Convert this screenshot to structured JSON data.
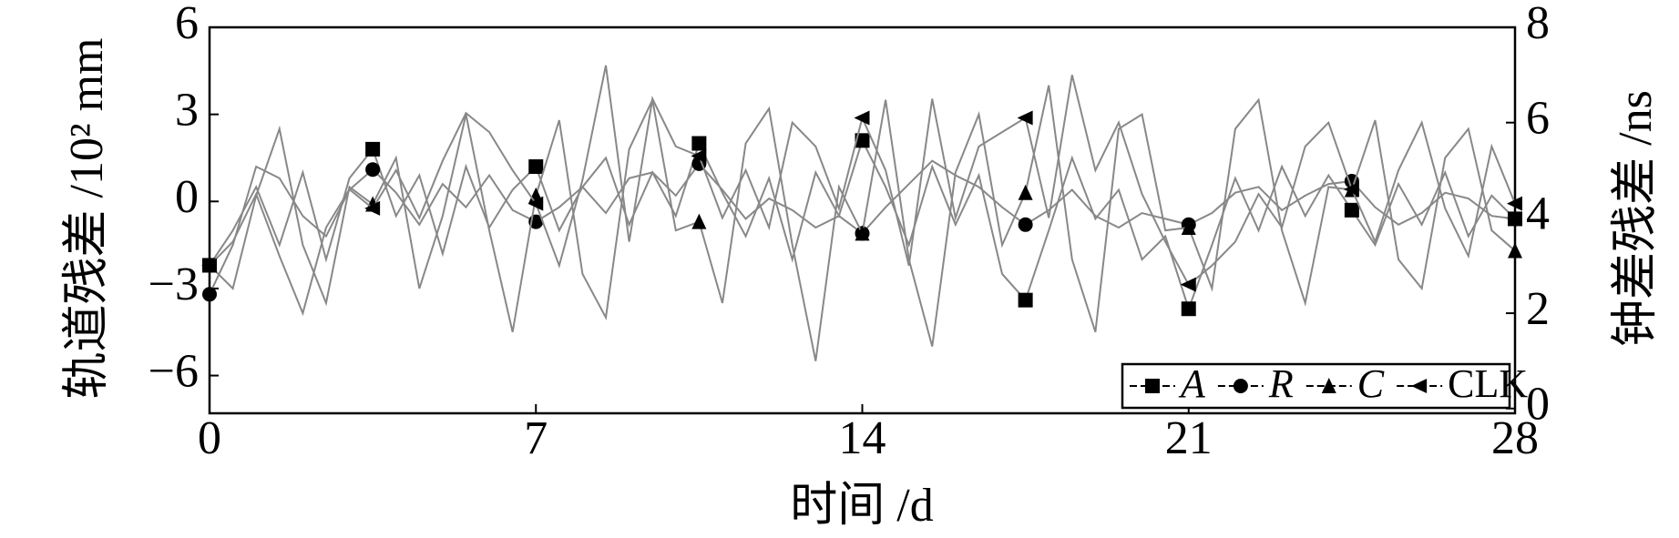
{
  "chart_data": {
    "type": "line",
    "x_label": "时间 /d",
    "y_label": "轨道残差 /10² mm",
    "y2_label": "钟差残差 /ns",
    "x": [
      0,
      0.5,
      1,
      1.5,
      2,
      2.5,
      3,
      3.5,
      4,
      4.5,
      5,
      5.5,
      6,
      6.5,
      7,
      7.5,
      8,
      8.5,
      9,
      9.5,
      10,
      10.5,
      11,
      11.5,
      12,
      12.5,
      13,
      13.5,
      14,
      14.5,
      15,
      15.5,
      16,
      16.5,
      17,
      17.5,
      18,
      18.5,
      19,
      19.5,
      20,
      20.5,
      21,
      21.5,
      22,
      22.5,
      23,
      23.5,
      24,
      24.5,
      25,
      25.5,
      26,
      26.5,
      27,
      27.5,
      28
    ],
    "xlim": [
      0,
      28
    ],
    "xticks": [
      0,
      7,
      14,
      21,
      28
    ],
    "ylim": [
      -7.3,
      6
    ],
    "yticks": [
      {
        "value": -6,
        "label": "−6"
      },
      {
        "value": -3,
        "label": "−3"
      },
      0,
      3,
      6
    ],
    "y2lim": [
      -0.1,
      8
    ],
    "y2ticks": [
      0,
      2,
      4,
      6,
      8
    ],
    "legend": "lower right",
    "series": [
      {
        "name": "A",
        "color": "#888888",
        "marker": "square",
        "values": [
          -2.2,
          -1.0,
          0.5,
          -1.5,
          1.0,
          -2.0,
          0.8,
          1.8,
          -0.5,
          0.9,
          -1.8,
          1.2,
          -0.9,
          0.4,
          1.2,
          -1.0,
          0.5,
          1.5,
          -0.8,
          1.0,
          -0.5,
          2.0,
          0.3,
          -1.2,
          0.8,
          -2.0,
          1.0,
          -0.5,
          2.1,
          0.5,
          -1.5,
          1.2,
          -0.8,
          0.9,
          -2.5,
          -3.4,
          -1.0,
          1.5,
          -0.6,
          0.4,
          -2.0,
          -1.2,
          -3.7,
          -1.5,
          0.8,
          -1.0,
          1.2,
          -0.5,
          0.9,
          -0.3,
          -1.5,
          0.6,
          -0.8,
          1.0,
          -1.2,
          0.2,
          -0.6
        ]
      },
      {
        "name": "R",
        "color": "#888888",
        "marker": "circle",
        "values": [
          -3.2,
          -1.5,
          1.2,
          0.8,
          -0.5,
          -1.2,
          0.4,
          1.1,
          0.3,
          -0.8,
          0.6,
          -0.2,
          0.9,
          -0.3,
          -0.7,
          -0.2,
          0.5,
          -0.4,
          0.8,
          1.0,
          0.2,
          1.3,
          0.4,
          -0.6,
          0.1,
          -0.3,
          -0.9,
          -0.5,
          -1.1,
          -0.2,
          0.6,
          1.4,
          0.9,
          0.5,
          -0.2,
          -0.8,
          -0.3,
          0.4,
          -0.5,
          -0.9,
          -0.4,
          -0.6,
          -0.8,
          -0.4,
          0.3,
          0.5,
          -0.3,
          0.2,
          0.6,
          0.7,
          -0.2,
          -0.8,
          -0.4,
          0.3,
          0.1,
          -0.5,
          -0.6
        ]
      },
      {
        "name": "C",
        "color": "#888888",
        "marker": "triangle-up",
        "values": [
          -2.2,
          -3.0,
          0.2,
          2.5,
          -1.5,
          -3.5,
          0.5,
          -0.1,
          1.5,
          -3.0,
          -0.5,
          3.0,
          -1.0,
          -4.5,
          0.2,
          2.8,
          -2.5,
          -4.0,
          1.8,
          3.5,
          -1.0,
          -0.7,
          -3.5,
          2.0,
          3.2,
          -1.5,
          -5.5,
          0.5,
          -1.1,
          3.5,
          -2.0,
          -5.0,
          1.0,
          3.0,
          -1.5,
          0.3,
          4.0,
          -2.0,
          -4.5,
          2.5,
          3.0,
          -1.0,
          -0.9,
          -3.0,
          2.5,
          3.5,
          -1.0,
          -3.5,
          0.5,
          0.4,
          2.8,
          -2.0,
          -3.0,
          1.5,
          2.5,
          -1.0,
          -1.7
        ]
      },
      {
        "name": "CLK",
        "color": "#888888",
        "marker": "triangle-left",
        "axis": "y2",
        "values": [
          3.0,
          3.5,
          4.5,
          3.2,
          2.0,
          3.8,
          4.6,
          4.2,
          5.0,
          4.0,
          5.2,
          6.2,
          5.8,
          5.0,
          4.3,
          3.0,
          4.8,
          7.2,
          3.5,
          6.5,
          5.5,
          5.3,
          4.0,
          5.0,
          3.8,
          6.0,
          5.5,
          4.2,
          6.1,
          5.0,
          3.0,
          6.5,
          4.0,
          5.5,
          5.8,
          6.1,
          4.0,
          7.0,
          5.0,
          6.0,
          4.5,
          3.5,
          2.6,
          3.0,
          3.5,
          4.5,
          3.8,
          5.5,
          6.0,
          4.6,
          3.5,
          5.0,
          6.0,
          4.2,
          3.2,
          5.5,
          4.3
        ]
      }
    ]
  }
}
